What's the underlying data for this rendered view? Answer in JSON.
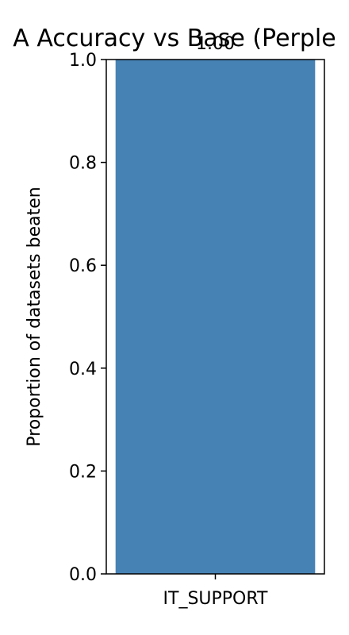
{
  "chart_data": {
    "type": "bar",
    "title": "A Accuracy vs Base (Perple",
    "categories": [
      "IT_SUPPORT"
    ],
    "values": [
      1.0
    ],
    "data_labels": [
      "1.00"
    ],
    "ylabel": "Proportion of datasets beaten",
    "xlabel": "",
    "ylim": [
      0.0,
      1.0
    ],
    "yticks": [
      0.0,
      0.2,
      0.4,
      0.6,
      0.8,
      1.0
    ],
    "ytick_labels": [
      "0.0",
      "0.2",
      "0.4",
      "0.6",
      "0.8",
      "1.0"
    ],
    "grid": false,
    "bar_color": "#4682b4"
  }
}
